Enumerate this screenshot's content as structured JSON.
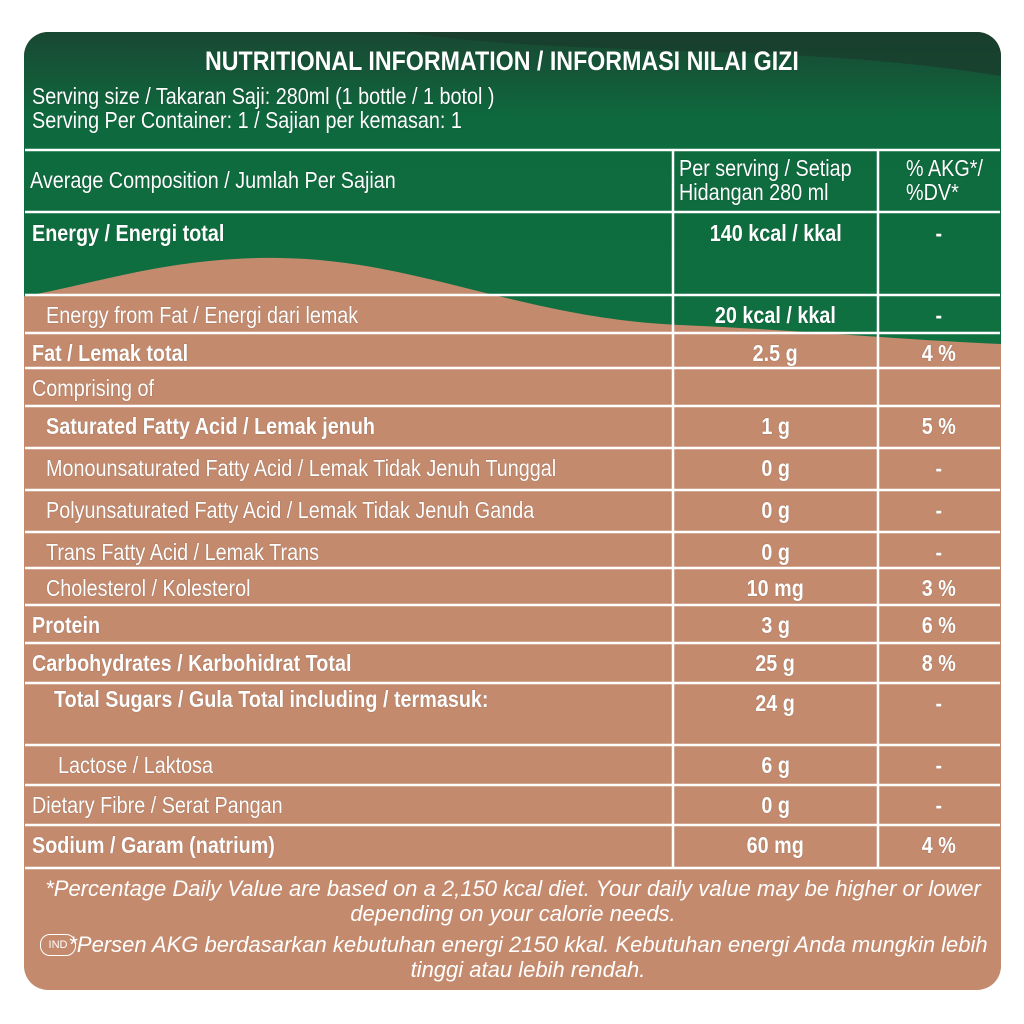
{
  "header": {
    "title_en": "NUTRITIONAL INFORMATION /",
    "title_id": "INFORMASI NILAI GIZI",
    "serving_size": "Serving size / Takaran Saji: 280ml (1 bottle / 1 botol )",
    "servings_per_container": "Serving Per Container: 1 / Sajian per kemasan: 1"
  },
  "table": {
    "columns": [
      "Average Composition / Jumlah Per Sajian",
      "Per serving / Setiap Hidangan 280 ml",
      "% AKG*/ %DV*"
    ],
    "rows": [
      [
        "Energy / Energi total",
        "140 kcal / kkal",
        "-"
      ],
      [
        "Energy from Fat / Energi dari lemak",
        "20 kcal / kkal",
        "-"
      ],
      [
        "Fat / Lemak total",
        "2.5 g",
        "4 %"
      ],
      [
        "Comprising of"
      ],
      [
        "Saturated Fatty Acid / Lemak jenuh",
        "1 g",
        "5 %"
      ],
      [
        "Monounsaturated Fatty Acid / Lemak Tidak Jenuh Tunggal",
        "0 g",
        "-"
      ],
      [
        "Polyunsaturated Fatty Acid /  Lemak Tidak Jenuh Ganda",
        "0 g",
        "-"
      ],
      [
        "Trans Fatty Acid / Lemak Trans",
        "0 g",
        "-"
      ],
      [
        "Cholesterol / Kolesterol",
        "10 mg",
        "3 %"
      ],
      [
        "Protein",
        "3 g",
        "6 %"
      ],
      [
        "Carbohydrates / Karbohidrat Total",
        "25 g",
        "8 %"
      ],
      [
        "Total Sugars / Gula Total\nincluding / termasuk:",
        "24 g",
        "-"
      ],
      [
        "Lactose / Laktosa",
        "6 g",
        "-"
      ],
      [
        "Dietary Fibre / Serat Pangan",
        "0 g",
        "-"
      ],
      [
        "Sodium / Garam (natrium)",
        "60 mg",
        "4 %"
      ]
    ]
  },
  "footnote": {
    "en": "*Percentage Daily Value are based on a 2,150 kcal diet. Your daily value may be higher or lower depending on your calorie needs.",
    "badge": "IND",
    "id": "*Persen AKG berdasarkan kebutuhan energi 2150 kkal. Kebutuhan energi Anda mungkin lebih tinggi atau lebih rendah."
  }
}
